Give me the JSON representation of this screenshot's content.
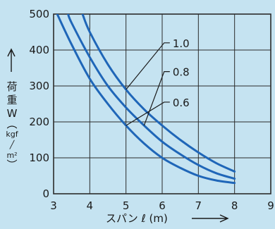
{
  "chart_data": {
    "type": "line",
    "title": "",
    "xlabel": "スパン ℓ (m)",
    "xlim": [
      3,
      9
    ],
    "ylim": [
      0,
      500
    ],
    "xticks": [
      3,
      4,
      5,
      6,
      7,
      8,
      9
    ],
    "yticks": [
      0,
      100,
      200,
      300,
      400,
      500
    ],
    "grid": true,
    "ylabel": {
      "main": [
        "荷",
        "重",
        "W"
      ],
      "paren_open": "︵",
      "unit_top": "kgf",
      "slash": "╱",
      "unit_bottom": "m²",
      "paren_close": "︶"
    },
    "series": [
      {
        "name": "1.0",
        "x": [
          3.8,
          4.0,
          4.5,
          5.0,
          5.5,
          6.0,
          6.5,
          7.0,
          7.5,
          8.0
        ],
        "y": [
          500,
          450,
          360,
          290,
          235,
          190,
          150,
          115,
          85,
          62
        ]
      },
      {
        "name": "0.8",
        "x": [
          3.4,
          3.5,
          4.0,
          4.5,
          5.0,
          5.5,
          6.0,
          6.5,
          7.0,
          7.5,
          8.0
        ],
        "y": [
          500,
          475,
          380,
          300,
          240,
          190,
          145,
          110,
          80,
          57,
          42
        ]
      },
      {
        "name": "0.6",
        "x": [
          3.1,
          3.5,
          4.0,
          4.5,
          5.0,
          5.5,
          6.0,
          6.5,
          7.0,
          7.5,
          8.0
        ],
        "y": [
          500,
          415,
          320,
          250,
          190,
          140,
          100,
          72,
          50,
          37,
          30
        ]
      }
    ],
    "annotations": [
      {
        "text": "1.0",
        "series": 0,
        "at_x": 5.0,
        "label_x": 6.25,
        "label_y": 420
      },
      {
        "text": "0.8",
        "series": 1,
        "at_x": 5.5,
        "label_x": 6.25,
        "label_y": 340
      },
      {
        "text": "0.6",
        "series": 2,
        "at_x": 5.0,
        "label_x": 6.25,
        "label_y": 255
      }
    ],
    "line_color": "#1f66b8",
    "grid_color": "#2b2b2b",
    "background": "#c5e3f1"
  }
}
